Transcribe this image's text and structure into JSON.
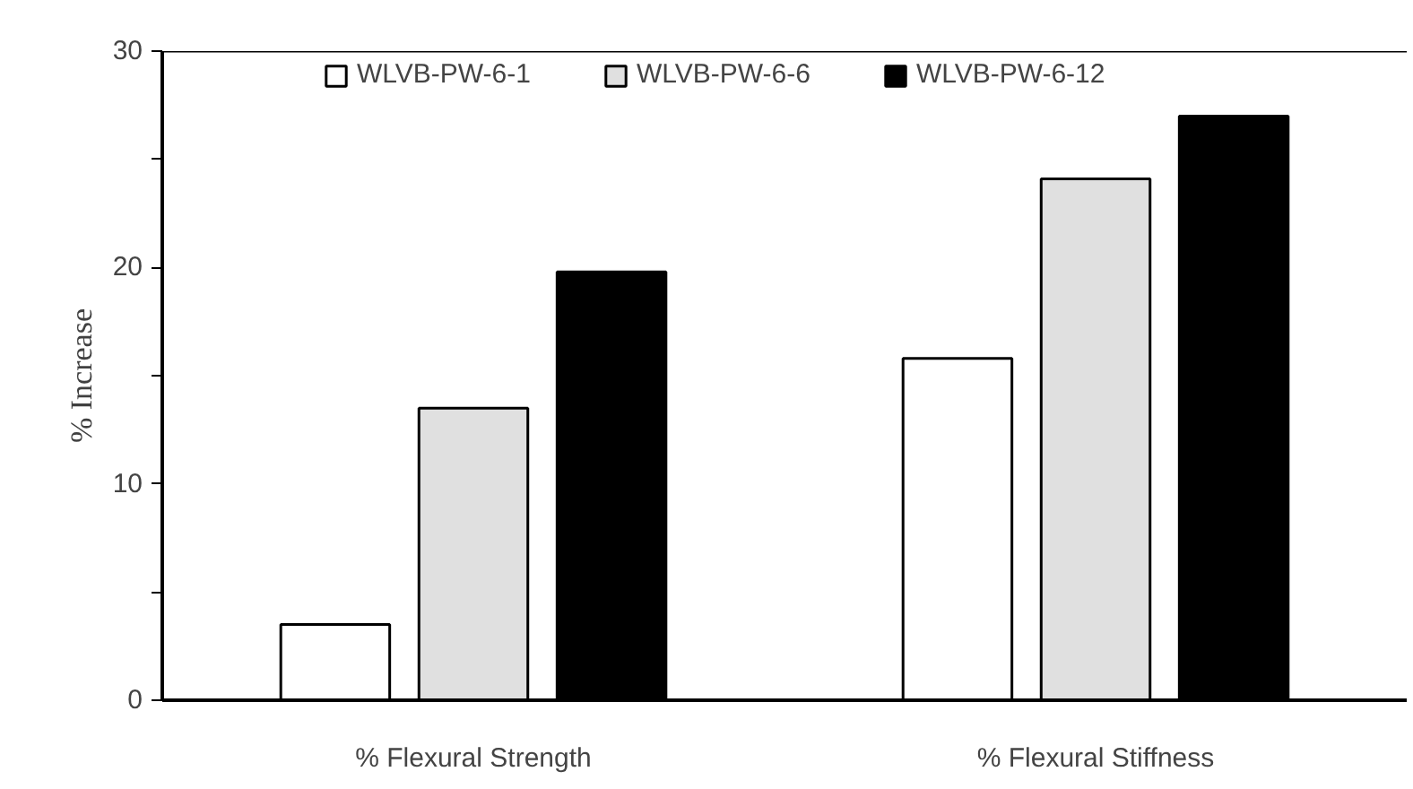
{
  "chart_data": {
    "type": "bar",
    "ylabel": "% Increase",
    "categories": [
      "% Flexural Strength",
      "% Flexural Stiffness"
    ],
    "series": [
      {
        "name": "WLVB-PW-6-1",
        "color": "#ffffff",
        "values": [
          3.5,
          15.8
        ]
      },
      {
        "name": "WLVB-PW-6-6",
        "color": "#e0e0e0",
        "values": [
          13.5,
          24.1
        ]
      },
      {
        "name": "WLVB-PW-6-12",
        "color": "#000000",
        "values": [
          19.8,
          27.0
        ]
      }
    ],
    "ylim": [
      0,
      30
    ],
    "yticks": [
      0,
      {
        "value": 5,
        "label": null
      },
      10,
      {
        "value": 15,
        "label": null
      },
      20,
      {
        "value": 25,
        "label": null
      },
      30
    ],
    "grid": false,
    "legend": "top"
  }
}
